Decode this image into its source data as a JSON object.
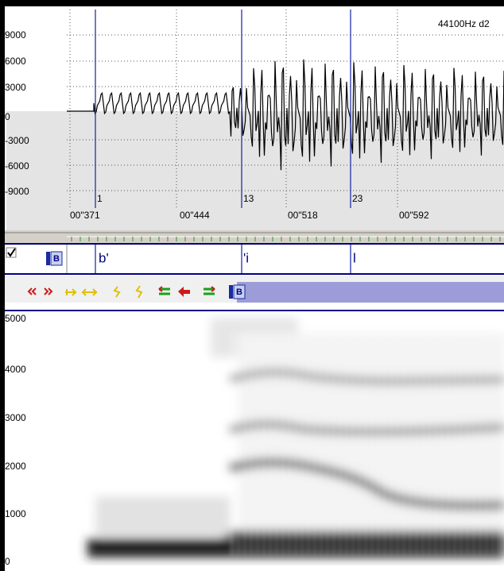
{
  "waveform": {
    "sample_rate": "44100Hz d2",
    "amplitude_labels": [
      "9000",
      "6000",
      "3000",
      "0",
      "-3000",
      "-6000",
      "-9000"
    ],
    "markers": [
      "1",
      "13",
      "23"
    ],
    "time_labels": [
      "00\"371",
      "00\"444",
      "00\"518",
      "00\"592"
    ]
  },
  "tiers": {
    "button": "B",
    "labels": [
      "b'",
      "'i",
      "l"
    ]
  },
  "toolbar": {
    "button": "B"
  },
  "spectrogram": {
    "frequency_labels": [
      "5000",
      "4000",
      "3000",
      "2000",
      "1000",
      "0"
    ]
  }
}
